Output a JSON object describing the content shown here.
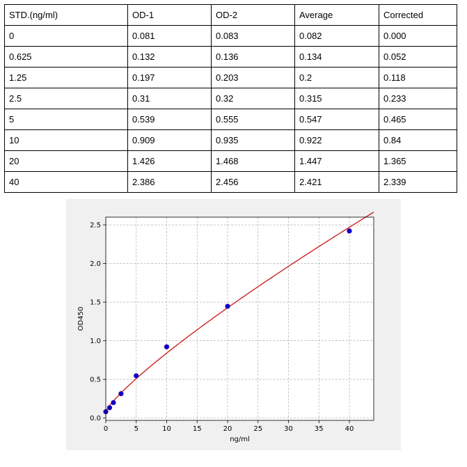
{
  "table": {
    "headers": [
      "STD.(ng/ml)",
      "OD-1",
      "OD-2",
      "Average",
      "Corrected"
    ],
    "rows": [
      [
        "0",
        "0.081",
        "0.083",
        "0.082",
        "0.000"
      ],
      [
        "0.625",
        "0.132",
        "0.136",
        "0.134",
        "0.052"
      ],
      [
        "1.25",
        "0.197",
        "0.203",
        "0.2",
        "0.118"
      ],
      [
        "2.5",
        "0.31",
        "0.32",
        "0.315",
        "0.233"
      ],
      [
        "5",
        "0.539",
        "0.555",
        "0.547",
        "0.465"
      ],
      [
        "10",
        "0.909",
        "0.935",
        "0.922",
        "0.84"
      ],
      [
        "20",
        "1.426",
        "1.468",
        "1.447",
        "1.365"
      ],
      [
        "40",
        "2.386",
        "2.456",
        "2.421",
        "2.339"
      ]
    ]
  },
  "chart_data": {
    "type": "scatter",
    "xlabel": "ng/ml",
    "ylabel": "OD450",
    "xlim": [
      0,
      44
    ],
    "ylim": [
      -0.03,
      2.6
    ],
    "xticks": [
      0,
      5,
      10,
      15,
      20,
      25,
      30,
      35,
      40
    ],
    "yticks": [
      0.0,
      0.5,
      1.0,
      1.5,
      2.0,
      2.5
    ],
    "xtick_labels": [
      "0",
      "5",
      "10",
      "15",
      "20",
      "25",
      "30",
      "35",
      "40"
    ],
    "ytick_labels": [
      "0.0",
      "0.5",
      "1.0",
      "1.5",
      "2.0",
      "2.5"
    ],
    "grid": true,
    "points": {
      "x": [
        0,
        0.625,
        1.25,
        2.5,
        5,
        10,
        20,
        40
      ],
      "y": [
        0.082,
        0.134,
        0.2,
        0.315,
        0.547,
        0.922,
        1.447,
        2.421
      ]
    },
    "fit_curve": {
      "x": [
        0,
        0.625,
        1.25,
        2.5,
        5,
        7.5,
        10,
        12.5,
        15,
        17.5,
        20,
        22.5,
        25,
        27.5,
        30,
        32.5,
        35,
        37.5,
        40,
        42.5,
        44
      ],
      "y": [
        0.085,
        0.14,
        0.197,
        0.31,
        0.525,
        0.728,
        0.92,
        1.1,
        1.27,
        1.43,
        1.582,
        1.73,
        1.87,
        2.0,
        2.125,
        2.245,
        2.36,
        2.47,
        2.43,
        2.53,
        2.59
      ]
    },
    "colors": {
      "points": "#0000cc",
      "fit_line": "#cc2222",
      "grid": "#b0b0b0",
      "panel_bg": "#f0f0f0",
      "plot_bg": "#ffffff"
    }
  }
}
